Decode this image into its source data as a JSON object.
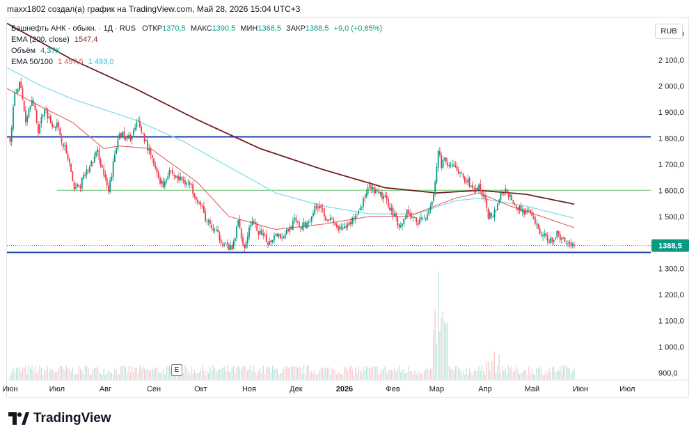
{
  "header": {
    "text": "maxx1802 создал(а) график на TradingView.com, Май 28, 2026 15:04 UTC+3"
  },
  "legend": {
    "symbol": "Башнефть АНК - обыкн. · 1Д · RUS",
    "open_label": "ОТКР",
    "open": "1370,5",
    "high_label": "МАКС",
    "high": "1390,5",
    "low_label": "МИН",
    "low": "1368,5",
    "close_label": "ЗАКР",
    "close": "1388,5",
    "change": "+9,0 (+0,65%)",
    "ema200_label": "EMA (200, close)",
    "ema200_value": "1547,4",
    "volume_label": "Объём",
    "volume_value": "4,37",
    "volume_unit": "K",
    "ema50_100_label": "EMA 50/100",
    "ema50_value": "1 457,5",
    "ema100_value": "1 493,0"
  },
  "currency": "RUB",
  "earnings_marker": "E",
  "brand": "TradingView",
  "colors": {
    "up": "#089981",
    "down": "#f23645",
    "ema200": "#6d1f1f",
    "ema50": "#e0605a",
    "ema100": "#80deea",
    "level_line": "#1e3fa8",
    "mid_line": "#7cc67c",
    "price_tag": "#089981"
  },
  "chart_data": {
    "type": "candlestick",
    "y_ticks": [
      "2 200,0",
      "2 100,0",
      "2 000,0",
      "1 900,0",
      "1 800,0",
      "1 700,0",
      "1 600,0",
      "1 500,0",
      "1 400,0",
      "1 300,0",
      "1 200,0",
      "1 100,0",
      "1 000,0",
      "900,0"
    ],
    "y_tick_values": [
      2200,
      2100,
      2000,
      1900,
      1800,
      1700,
      1600,
      1500,
      1400,
      1300,
      1200,
      1100,
      1000,
      900
    ],
    "ylim": [
      875,
      2260
    ],
    "x_ticks": [
      {
        "label": "Июн",
        "t": 0
      },
      {
        "label": "Июл",
        "t": 30
      },
      {
        "label": "Авг",
        "t": 61
      },
      {
        "label": "Сен",
        "t": 92
      },
      {
        "label": "Окт",
        "t": 122
      },
      {
        "label": "Ноя",
        "t": 153
      },
      {
        "label": "Дек",
        "t": 183
      },
      {
        "label": "2026",
        "t": 214,
        "bold": true
      },
      {
        "label": "Фев",
        "t": 245
      },
      {
        "label": "Мар",
        "t": 273
      },
      {
        "label": "Апр",
        "t": 304
      },
      {
        "label": "Май",
        "t": 334
      },
      {
        "label": "Июн",
        "t": 365
      },
      {
        "label": "Июл",
        "t": 395
      }
    ],
    "xlim": [
      -2,
      410
    ],
    "last_t": 361,
    "last_price": 1388.5,
    "last_price_label": "1388,5",
    "horizontal_lines": [
      {
        "name": "resistance",
        "value": 1805,
        "from_t": -2,
        "to_t": 410,
        "color": "#1e3fa8"
      },
      {
        "name": "support",
        "value": 1362,
        "from_t": -2,
        "to_t": 410,
        "color": "#1e3fa8"
      },
      {
        "name": "mid-level",
        "value": 1600,
        "from_t": 30,
        "to_t": 410,
        "color": "#7cc67c"
      }
    ],
    "price_anchors": [
      [
        0,
        1800
      ],
      [
        3,
        1960
      ],
      [
        6,
        2020
      ],
      [
        10,
        1870
      ],
      [
        14,
        1960
      ],
      [
        18,
        1830
      ],
      [
        22,
        1920
      ],
      [
        26,
        1860
      ],
      [
        30,
        1850
      ],
      [
        34,
        1780
      ],
      [
        38,
        1700
      ],
      [
        40,
        1620
      ],
      [
        44,
        1610
      ],
      [
        48,
        1660
      ],
      [
        52,
        1700
      ],
      [
        56,
        1750
      ],
      [
        60,
        1660
      ],
      [
        63,
        1590
      ],
      [
        66,
        1700
      ],
      [
        70,
        1830
      ],
      [
        74,
        1790
      ],
      [
        78,
        1810
      ],
      [
        82,
        1860
      ],
      [
        86,
        1800
      ],
      [
        90,
        1730
      ],
      [
        94,
        1660
      ],
      [
        98,
        1620
      ],
      [
        102,
        1680
      ],
      [
        106,
        1650
      ],
      [
        110,
        1640
      ],
      [
        114,
        1630
      ],
      [
        118,
        1590
      ],
      [
        122,
        1540
      ],
      [
        126,
        1480
      ],
      [
        130,
        1450
      ],
      [
        134,
        1420
      ],
      [
        138,
        1390
      ],
      [
        142,
        1370
      ],
      [
        146,
        1480
      ],
      [
        150,
        1380
      ],
      [
        154,
        1480
      ],
      [
        158,
        1450
      ],
      [
        162,
        1420
      ],
      [
        166,
        1400
      ],
      [
        170,
        1440
      ],
      [
        174,
        1420
      ],
      [
        178,
        1450
      ],
      [
        182,
        1480
      ],
      [
        186,
        1460
      ],
      [
        190,
        1470
      ],
      [
        194,
        1520
      ],
      [
        198,
        1550
      ],
      [
        202,
        1500
      ],
      [
        206,
        1480
      ],
      [
        210,
        1450
      ],
      [
        214,
        1450
      ],
      [
        218,
        1480
      ],
      [
        222,
        1510
      ],
      [
        226,
        1560
      ],
      [
        230,
        1610
      ],
      [
        234,
        1590
      ],
      [
        238,
        1580
      ],
      [
        242,
        1550
      ],
      [
        246,
        1500
      ],
      [
        250,
        1460
      ],
      [
        254,
        1520
      ],
      [
        258,
        1490
      ],
      [
        262,
        1480
      ],
      [
        266,
        1500
      ],
      [
        270,
        1560
      ],
      [
        272,
        1620
      ],
      [
        274,
        1740
      ],
      [
        276,
        1700
      ],
      [
        278,
        1720
      ],
      [
        280,
        1680
      ],
      [
        284,
        1700
      ],
      [
        288,
        1660
      ],
      [
        292,
        1640
      ],
      [
        296,
        1600
      ],
      [
        300,
        1610
      ],
      [
        304,
        1560
      ],
      [
        306,
        1500
      ],
      [
        310,
        1520
      ],
      [
        314,
        1580
      ],
      [
        318,
        1600
      ],
      [
        322,
        1540
      ],
      [
        326,
        1530
      ],
      [
        330,
        1520
      ],
      [
        334,
        1500
      ],
      [
        338,
        1450
      ],
      [
        342,
        1420
      ],
      [
        346,
        1410
      ],
      [
        350,
        1430
      ],
      [
        354,
        1410
      ],
      [
        358,
        1400
      ],
      [
        361,
        1388
      ]
    ],
    "ema200_anchors": [
      [
        -2,
        2240
      ],
      [
        40,
        2100
      ],
      [
        80,
        1990
      ],
      [
        120,
        1870
      ],
      [
        160,
        1760
      ],
      [
        200,
        1680
      ],
      [
        240,
        1610
      ],
      [
        273,
        1590
      ],
      [
        300,
        1600
      ],
      [
        330,
        1585
      ],
      [
        361,
        1547
      ]
    ],
    "ema100_anchors": [
      [
        -2,
        2070
      ],
      [
        20,
        2000
      ],
      [
        40,
        1950
      ],
      [
        80,
        1870
      ],
      [
        110,
        1790
      ],
      [
        140,
        1690
      ],
      [
        170,
        1590
      ],
      [
        200,
        1540
      ],
      [
        230,
        1510
      ],
      [
        260,
        1510
      ],
      [
        285,
        1560
      ],
      [
        300,
        1570
      ],
      [
        330,
        1540
      ],
      [
        361,
        1493
      ]
    ],
    "ema50_anchors": [
      [
        -2,
        1990
      ],
      [
        20,
        1920
      ],
      [
        40,
        1860
      ],
      [
        60,
        1760
      ],
      [
        70,
        1770
      ],
      [
        90,
        1760
      ],
      [
        120,
        1630
      ],
      [
        140,
        1500
      ],
      [
        170,
        1450
      ],
      [
        200,
        1470
      ],
      [
        230,
        1500
      ],
      [
        255,
        1500
      ],
      [
        285,
        1570
      ],
      [
        300,
        1590
      ],
      [
        320,
        1540
      ],
      [
        340,
        1500
      ],
      [
        361,
        1457
      ]
    ],
    "volume_ylim": [
      0,
      60000
    ],
    "volume_last": 4370
  }
}
